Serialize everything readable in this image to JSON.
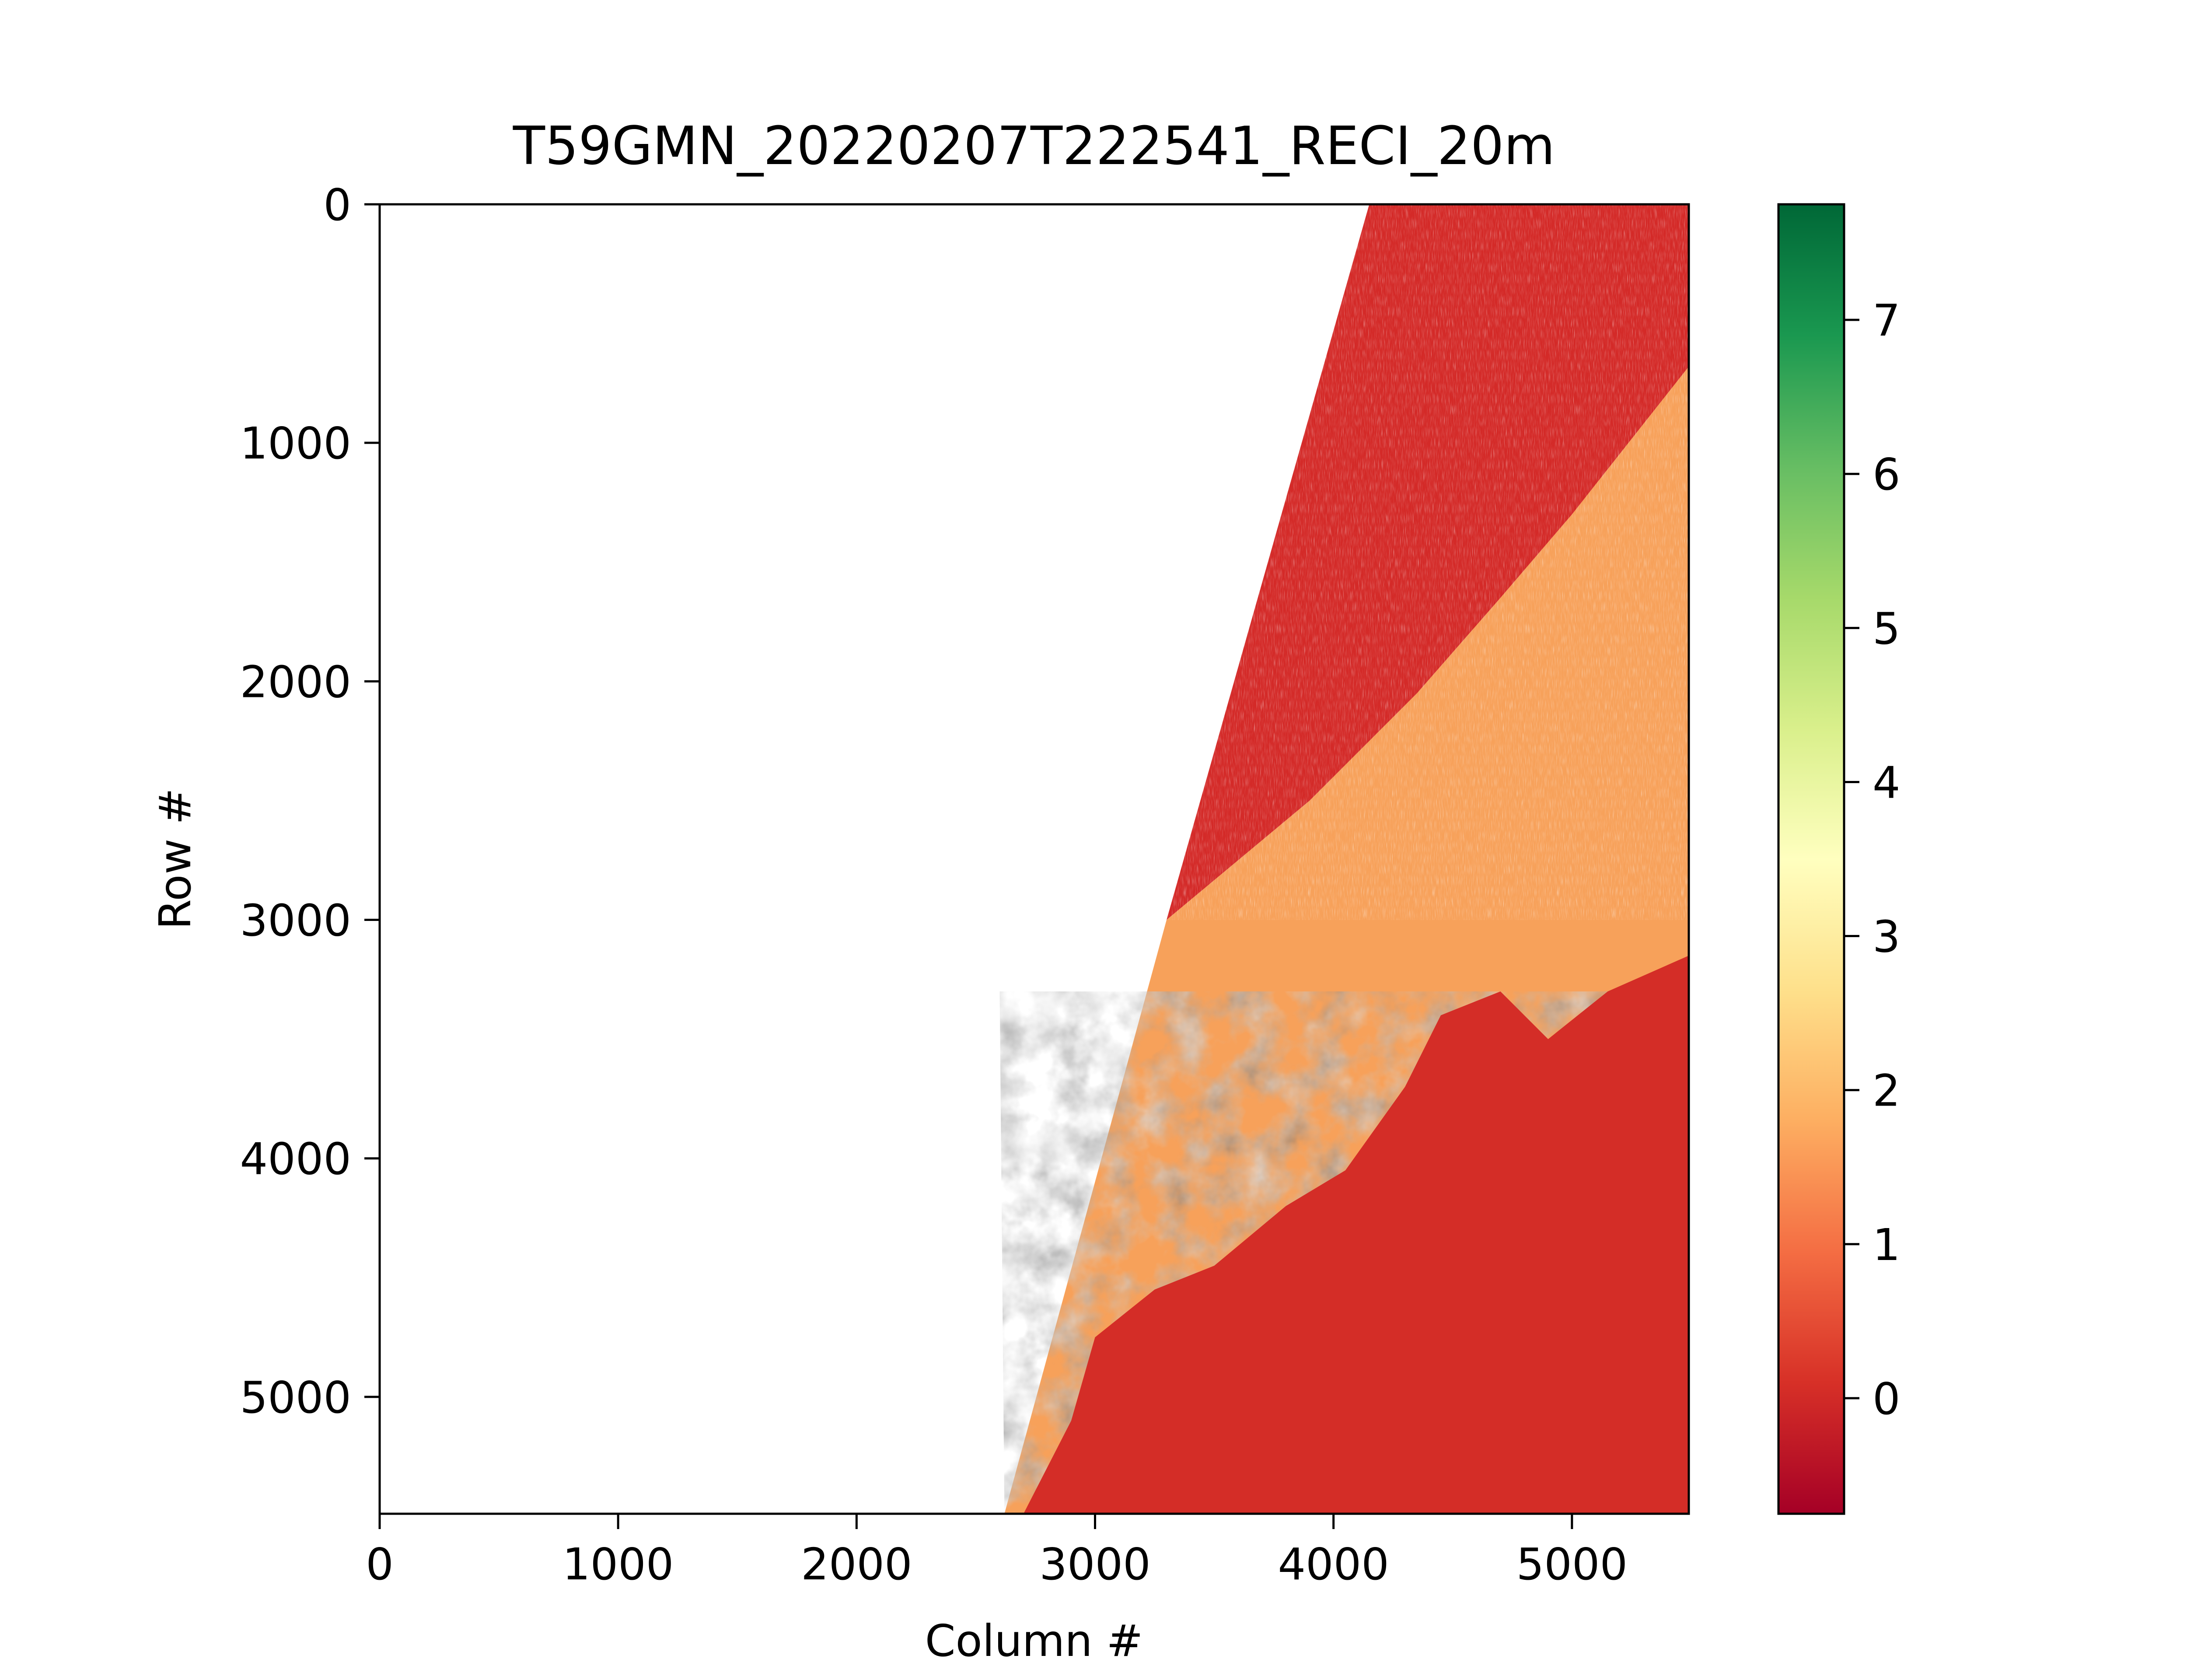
{
  "chart_data": {
    "type": "heatmap",
    "title": "T59GMN_20220207T222541_RECI_20m",
    "xlabel": "Column #",
    "ylabel": "Row #",
    "xlim": [
      0,
      5490
    ],
    "ylim": [
      5490,
      0
    ],
    "x_ticks": [
      0,
      1000,
      2000,
      3000,
      4000,
      5000
    ],
    "x_tick_labels": [
      "0",
      "1000",
      "2000",
      "3000",
      "4000",
      "5000"
    ],
    "y_ticks": [
      0,
      1000,
      2000,
      3000,
      4000,
      5000
    ],
    "y_tick_labels": [
      "0",
      "1000",
      "2000",
      "3000",
      "4000",
      "5000"
    ],
    "colormap": "RdYlGn",
    "colormap_stops": [
      "#a50026",
      "#d73027",
      "#f46d43",
      "#fdae61",
      "#fee08b",
      "#ffffbf",
      "#d9ef8b",
      "#a6d96a",
      "#66bd63",
      "#1a9850",
      "#006837"
    ],
    "colorbar": {
      "vmin": -0.75,
      "vmax": 7.75,
      "ticks": [
        0,
        1,
        2,
        3,
        4,
        5,
        6,
        7
      ],
      "tick_labels": [
        "0",
        "1",
        "2",
        "3",
        "4",
        "5",
        "6",
        "7"
      ]
    },
    "grid": false,
    "no_data_color": "#ffffff",
    "regions": {
      "swath_west_edge": [
        [
          4150,
          0
        ],
        [
          3300,
          3000
        ],
        [
          2620,
          5490
        ]
      ],
      "water_shoreline": [
        [
          5490,
          680
        ],
        [
          5000,
          1300
        ],
        [
          4700,
          1650
        ],
        [
          4350,
          2050
        ],
        [
          3900,
          2500
        ],
        [
          3300,
          3000
        ]
      ],
      "water_value": 0.0,
      "land_typical_value": 1.9,
      "lowland_value": 0.1
    }
  }
}
